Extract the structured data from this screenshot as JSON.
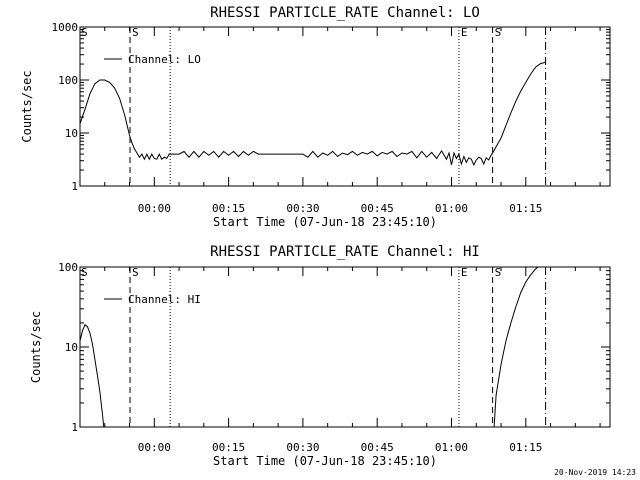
{
  "footer_date": "20-Nov-2019 14:23",
  "chart_data": [
    {
      "type": "line",
      "title": "RHESSI PARTICLE_RATE Channel: LO",
      "xlabel": "Start Time (07-Jun-18 23:45:10)",
      "ylabel": "Counts/sec",
      "y_scale": "log",
      "ylim": [
        1,
        1000
      ],
      "xlim": [
        -15,
        92
      ],
      "x_unit": "minutes after 00:00 (08-Jun-18)",
      "yticks": [
        {
          "v": 1,
          "label": "1"
        },
        {
          "v": 10,
          "label": "10"
        },
        {
          "v": 100,
          "label": "100"
        },
        {
          "v": 1000,
          "label": "1000"
        }
      ],
      "xticks": [
        {
          "v": 0,
          "label": "00:00"
        },
        {
          "v": 15,
          "label": "00:15"
        },
        {
          "v": 30,
          "label": "00:30"
        },
        {
          "v": 45,
          "label": "00:45"
        },
        {
          "v": 60,
          "label": "01:00"
        },
        {
          "v": 75,
          "label": "01:15"
        }
      ],
      "legend": {
        "label": "Channel: LO",
        "position": "top-left"
      },
      "markers": [
        {
          "x": -4.9,
          "style": "dashed",
          "label": "S"
        },
        {
          "x": 3.2,
          "style": "dotted",
          "label": ""
        },
        {
          "x": 61.5,
          "style": "dotted",
          "label": "E"
        },
        {
          "x": 68.3,
          "style": "dashed",
          "label": "S"
        },
        {
          "x": 79.0,
          "style": "dashdot",
          "label": ""
        }
      ],
      "series": [
        {
          "name": "Channel: LO",
          "x": [
            -15,
            -14,
            -13,
            -12,
            -11,
            -10,
            -9,
            -8,
            -7,
            -6,
            -5.5,
            -5,
            -4.5,
            -4,
            -3.5,
            -3,
            -2.5,
            -2,
            -1.5,
            -1,
            -0.5,
            0,
            0.5,
            1,
            1.5,
            2,
            2.5,
            3,
            3.5,
            4,
            5,
            6,
            7,
            8,
            9,
            10,
            11,
            12,
            13,
            14,
            15,
            16,
            17,
            18,
            19,
            20,
            21,
            22,
            23,
            24,
            25,
            26,
            27,
            28,
            29,
            30,
            31,
            32,
            33,
            34,
            35,
            36,
            37,
            38,
            39,
            40,
            41,
            42,
            43,
            44,
            45,
            46,
            47,
            48,
            49,
            50,
            51,
            52,
            53,
            54,
            55,
            56,
            57,
            58,
            59,
            59.5,
            60,
            60.5,
            61,
            61.5,
            62,
            62.5,
            63,
            63.5,
            64,
            64.5,
            65,
            65.5,
            66,
            66.5,
            67,
            67.5,
            68,
            68.5,
            69,
            70,
            71,
            72,
            73,
            74,
            75,
            76,
            77,
            78,
            79
          ],
          "y": [
            15,
            28,
            55,
            85,
            100,
            100,
            90,
            70,
            45,
            22,
            14,
            9,
            6.5,
            5,
            4.2,
            3.5,
            4,
            3.2,
            4,
            3.2,
            4,
            3.3,
            3.2,
            4,
            3.2,
            3.5,
            3.3,
            4,
            4,
            4,
            4,
            4.5,
            3.5,
            4.5,
            3.5,
            4.5,
            3.8,
            4.5,
            3.5,
            4.5,
            3.8,
            4.5,
            3.6,
            4.5,
            3.8,
            4.5,
            4,
            4,
            4,
            4,
            4,
            4,
            4,
            4,
            4,
            4,
            3.5,
            4.5,
            3.5,
            4.2,
            3.8,
            4.5,
            3.6,
            4.2,
            3.9,
            4.5,
            3.8,
            4.3,
            4,
            4.5,
            3.7,
            4.3,
            4,
            4.5,
            3.6,
            4.2,
            4,
            4.5,
            3.4,
            4.5,
            3.5,
            4.3,
            3.3,
            4.6,
            3.2,
            4.2,
            2.5,
            4.2,
            3.3,
            4,
            2.6,
            3.6,
            2.8,
            3.4,
            3.2,
            2.5,
            3.1,
            3.5,
            3.3,
            2.6,
            3.4,
            3.1,
            3.8,
            4.5,
            5.5,
            8,
            14,
            24,
            40,
            62,
            90,
            130,
            175,
            205,
            215
          ]
        }
      ]
    },
    {
      "type": "line",
      "title": "RHESSI PARTICLE_RATE Channel: HI",
      "xlabel": "Start Time (07-Jun-18 23:45:10)",
      "ylabel": "Counts/sec",
      "y_scale": "log",
      "ylim": [
        1,
        100
      ],
      "xlim": [
        -15,
        92
      ],
      "x_unit": "minutes after 00:00 (08-Jun-18)",
      "yticks": [
        {
          "v": 1,
          "label": "1"
        },
        {
          "v": 10,
          "label": "10"
        },
        {
          "v": 100,
          "label": "100"
        }
      ],
      "xticks": [
        {
          "v": 0,
          "label": "00:00"
        },
        {
          "v": 15,
          "label": "00:15"
        },
        {
          "v": 30,
          "label": "00:30"
        },
        {
          "v": 45,
          "label": "00:45"
        },
        {
          "v": 60,
          "label": "01:00"
        },
        {
          "v": 75,
          "label": "01:15"
        }
      ],
      "legend": {
        "label": "Channel: HI",
        "position": "top-left"
      },
      "markers": [
        {
          "x": -4.9,
          "style": "dashed",
          "label": "S"
        },
        {
          "x": 3.2,
          "style": "dotted",
          "label": ""
        },
        {
          "x": 61.5,
          "style": "dotted",
          "label": "E"
        },
        {
          "x": 68.3,
          "style": "dashed",
          "label": "S"
        },
        {
          "x": 79.0,
          "style": "dashdot",
          "label": ""
        }
      ],
      "series": [
        {
          "name": "Channel: HI",
          "x": [
            -15,
            -14.5,
            -14,
            -13.5,
            -13,
            -12.5,
            -12,
            -11.5,
            -11,
            -10.5,
            -10.2
          ],
          "y": [
            12,
            16,
            19,
            18,
            15,
            11,
            7,
            4.5,
            2.8,
            1.5,
            1
          ]
        },
        {
          "name": "Channel: HI",
          "x": [
            68.6,
            69,
            70,
            71,
            72,
            73,
            74,
            75,
            76,
            77,
            77.5,
            78,
            79
          ],
          "y": [
            1,
            2.5,
            6,
            12,
            20,
            32,
            48,
            65,
            80,
            95,
            100,
            100,
            100
          ]
        }
      ]
    }
  ]
}
